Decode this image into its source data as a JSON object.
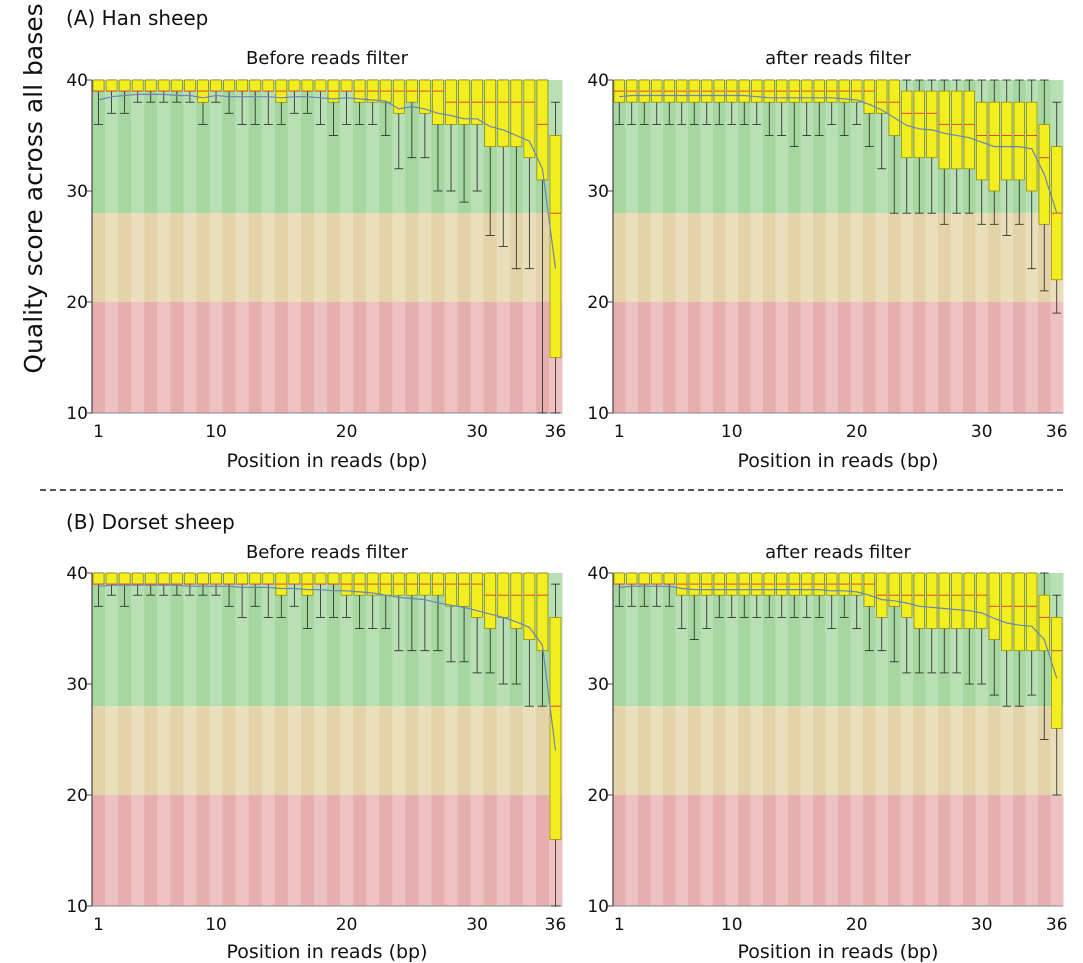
{
  "y_axis_title": "Quality score across all bases",
  "sections": [
    {
      "label": "(A) Han sheep"
    },
    {
      "label": "(B) Dorset sheep"
    }
  ],
  "colors": {
    "zone_good": "#b9e0b4",
    "zone_good_dark": "#a6d7a0",
    "zone_mid": "#eadfbb",
    "zone_mid_dark": "#e4d3a8",
    "zone_bad": "#eec2c2",
    "zone_bad_dark": "#e6aeae",
    "box_fill": "#f3ee1f",
    "box_stroke": "#8a8400",
    "median": "#e0472a",
    "mean_line": "#6a86b4",
    "whisker": "#222222"
  },
  "chart_data": [
    {
      "type": "box",
      "panel": "A-before",
      "title": "Before reads filter",
      "xlabel": "Position in reads (bp)",
      "ylabel": "",
      "ylim": [
        10,
        40
      ],
      "xlim": [
        1,
        36
      ],
      "x_ticks": [
        1,
        10,
        20,
        30,
        36
      ],
      "y_ticks": [
        10,
        20,
        30,
        40
      ],
      "zones": {
        "good": [
          28,
          40
        ],
        "mid": [
          20,
          28
        ],
        "bad": [
          10,
          20
        ]
      },
      "lower": [
        38,
        38,
        38,
        38,
        38,
        38,
        38,
        38,
        38,
        38,
        38,
        38,
        38,
        38,
        38,
        38,
        38,
        38,
        38,
        38,
        38,
        38,
        38,
        36,
        36,
        36,
        36,
        36,
        35,
        36,
        34,
        34,
        34,
        33,
        31,
        15
      ],
      "q1": [
        39,
        39,
        39,
        39,
        39,
        39,
        39,
        39,
        38,
        39,
        39,
        39,
        39,
        39,
        38,
        39,
        39,
        39,
        38,
        39,
        38,
        38,
        38,
        37,
        38,
        37,
        36,
        36,
        36,
        36,
        34,
        34,
        34,
        33,
        31,
        15
      ],
      "median": [
        39,
        39,
        39,
        39,
        39,
        39,
        39,
        39,
        39,
        39,
        39,
        39,
        39,
        39,
        39,
        39,
        39,
        39,
        39,
        39,
        39,
        39,
        39,
        39,
        39,
        39,
        39,
        38,
        38,
        38,
        38,
        38,
        38,
        38,
        36,
        28
      ],
      "q3": [
        40,
        40,
        40,
        40,
        40,
        40,
        40,
        40,
        40,
        40,
        40,
        40,
        40,
        40,
        40,
        40,
        40,
        40,
        40,
        40,
        40,
        40,
        40,
        40,
        40,
        40,
        40,
        40,
        40,
        40,
        40,
        40,
        40,
        40,
        40,
        35
      ],
      "low_whisker": [
        36,
        37,
        37,
        38,
        38,
        38,
        38,
        38,
        36,
        38,
        37,
        36,
        36,
        36,
        36,
        37,
        37,
        36,
        35,
        36,
        36,
        36,
        35,
        32,
        33,
        33,
        30,
        30,
        29,
        30,
        26,
        25,
        23,
        23,
        10,
        10
      ],
      "high_whisker": [
        40,
        40,
        40,
        40,
        40,
        40,
        40,
        40,
        40,
        40,
        40,
        40,
        40,
        40,
        40,
        40,
        40,
        40,
        40,
        40,
        40,
        40,
        40,
        40,
        40,
        40,
        40,
        40,
        40,
        40,
        40,
        40,
        40,
        40,
        40,
        38
      ],
      "mean": [
        38.2,
        38.5,
        38.6,
        38.7,
        38.7,
        38.7,
        38.6,
        38.6,
        38.4,
        38.6,
        38.5,
        38.5,
        38.5,
        38.5,
        38.4,
        38.5,
        38.5,
        38.4,
        38.3,
        38.4,
        38.3,
        38.2,
        38.1,
        37.4,
        37.6,
        37.4,
        37.0,
        36.8,
        36.5,
        36.5,
        35.8,
        35.5,
        35.0,
        34.5,
        32.0,
        23.0
      ]
    },
    {
      "type": "box",
      "panel": "A-after",
      "title": "after reads filter",
      "xlabel": "Position in reads (bp)",
      "ylabel": "",
      "ylim": [
        10,
        40
      ],
      "xlim": [
        1,
        36
      ],
      "x_ticks": [
        1,
        10,
        20,
        30,
        36
      ],
      "y_ticks": [
        10,
        20,
        30,
        40
      ],
      "zones": {
        "good": [
          28,
          40
        ],
        "mid": [
          20,
          28
        ],
        "bad": [
          10,
          20
        ]
      },
      "q1": [
        38,
        38,
        38,
        38,
        38,
        38,
        38,
        38,
        38,
        38,
        38,
        38,
        38,
        38,
        38,
        38,
        38,
        38,
        38,
        38,
        37,
        37,
        35,
        33,
        33,
        33,
        32,
        32,
        32,
        31,
        30,
        31,
        31,
        30,
        27,
        22
      ],
      "median": [
        39,
        39,
        39,
        39,
        39,
        39,
        39,
        39,
        39,
        39,
        39,
        39,
        39,
        39,
        39,
        39,
        39,
        39,
        39,
        39,
        39,
        38,
        38,
        37,
        37,
        37,
        36,
        36,
        36,
        35,
        35,
        35,
        35,
        35,
        33,
        28
      ],
      "q3": [
        40,
        40,
        40,
        40,
        40,
        40,
        40,
        40,
        40,
        40,
        40,
        40,
        40,
        40,
        40,
        40,
        40,
        40,
        40,
        40,
        40,
        40,
        40,
        39,
        39,
        39,
        39,
        39,
        39,
        38,
        38,
        38,
        38,
        38,
        36,
        34
      ],
      "low_whisker": [
        36,
        36,
        36,
        36,
        36,
        36,
        36,
        36,
        36,
        36,
        36,
        36,
        35,
        35,
        34,
        35,
        35,
        36,
        35,
        36,
        34,
        32,
        28,
        28,
        28,
        28,
        27,
        28,
        28,
        27,
        27,
        26,
        27,
        23,
        21,
        19
      ],
      "high_whisker": [
        40,
        40,
        40,
        40,
        40,
        40,
        40,
        40,
        40,
        40,
        40,
        40,
        40,
        40,
        40,
        40,
        40,
        40,
        40,
        40,
        40,
        40,
        40,
        40,
        40,
        40,
        40,
        40,
        40,
        40,
        40,
        40,
        40,
        40,
        40,
        38
      ],
      "mean": [
        38.5,
        38.6,
        38.6,
        38.6,
        38.6,
        38.6,
        38.6,
        38.6,
        38.6,
        38.6,
        38.6,
        38.5,
        38.4,
        38.4,
        38.4,
        38.4,
        38.4,
        38.4,
        38.3,
        38.2,
        37.8,
        37.3,
        36.6,
        35.9,
        35.6,
        35.5,
        35.2,
        35.0,
        34.8,
        34.4,
        34.0,
        34.0,
        34.0,
        33.8,
        31.5,
        28.0
      ]
    },
    {
      "type": "box",
      "panel": "B-before",
      "title": "Before reads filter",
      "xlabel": "Position in reads (bp)",
      "ylabel": "",
      "ylim": [
        10,
        40
      ],
      "xlim": [
        1,
        36
      ],
      "x_ticks": [
        1,
        10,
        20,
        30,
        36
      ],
      "y_ticks": [
        10,
        20,
        30,
        40
      ],
      "zones": {
        "good": [
          28,
          40
        ],
        "mid": [
          20,
          28
        ],
        "bad": [
          10,
          20
        ]
      },
      "q1": [
        39,
        39,
        39,
        39,
        39,
        39,
        39,
        39,
        39,
        39,
        39,
        39,
        39,
        39,
        38,
        39,
        38,
        39,
        39,
        38,
        38,
        38,
        38,
        38,
        38,
        38,
        38,
        37,
        37,
        36,
        35,
        36,
        35,
        34,
        33,
        16
      ],
      "median": [
        39,
        39,
        39,
        39,
        39,
        39,
        39,
        39,
        39,
        39,
        39,
        39,
        39,
        39,
        39,
        39,
        39,
        39,
        39,
        39,
        39,
        39,
        39,
        39,
        39,
        39,
        39,
        39,
        39,
        39,
        38,
        38,
        38,
        38,
        38,
        28
      ],
      "q3": [
        40,
        40,
        40,
        40,
        40,
        40,
        40,
        40,
        40,
        40,
        40,
        40,
        40,
        40,
        40,
        40,
        40,
        40,
        40,
        40,
        40,
        40,
        40,
        40,
        40,
        40,
        40,
        40,
        40,
        40,
        40,
        40,
        40,
        40,
        40,
        36
      ],
      "low_whisker": [
        37,
        38,
        37,
        38,
        38,
        38,
        38,
        38,
        38,
        38,
        37,
        36,
        37,
        36,
        36,
        37,
        35,
        36,
        36,
        36,
        35,
        35,
        35,
        33,
        33,
        33,
        33,
        32,
        32,
        31,
        31,
        30,
        30,
        28,
        28,
        10
      ],
      "high_whisker": [
        40,
        40,
        40,
        40,
        40,
        40,
        40,
        40,
        40,
        40,
        40,
        40,
        40,
        40,
        40,
        40,
        40,
        40,
        40,
        40,
        40,
        40,
        40,
        40,
        40,
        40,
        40,
        40,
        40,
        40,
        40,
        40,
        40,
        40,
        40,
        39
      ],
      "mean": [
        38.8,
        38.9,
        38.9,
        38.9,
        38.9,
        38.9,
        38.9,
        38.8,
        38.8,
        38.8,
        38.8,
        38.7,
        38.7,
        38.7,
        38.6,
        38.6,
        38.5,
        38.5,
        38.4,
        38.4,
        38.3,
        38.2,
        38.0,
        37.8,
        37.7,
        37.6,
        37.3,
        37.1,
        36.9,
        36.6,
        36.3,
        36.0,
        35.6,
        35.1,
        33.5,
        24.0
      ]
    },
    {
      "type": "box",
      "panel": "B-after",
      "title": "after reads filter",
      "xlabel": "Position in reads (bp)",
      "ylabel": "",
      "ylim": [
        10,
        40
      ],
      "xlim": [
        1,
        36
      ],
      "x_ticks": [
        1,
        10,
        20,
        30,
        36
      ],
      "y_ticks": [
        10,
        20,
        30,
        40
      ],
      "zones": {
        "good": [
          28,
          40
        ],
        "mid": [
          20,
          28
        ],
        "bad": [
          10,
          20
        ]
      },
      "q1": [
        39,
        39,
        39,
        39,
        39,
        38,
        38,
        38,
        38,
        38,
        38,
        38,
        38,
        38,
        38,
        38,
        38,
        38,
        38,
        38,
        37,
        36,
        37,
        36,
        35,
        35,
        35,
        35,
        35,
        35,
        34,
        33,
        33,
        33,
        33,
        26
      ],
      "median": [
        39,
        39,
        39,
        39,
        39,
        39,
        39,
        39,
        39,
        39,
        39,
        39,
        39,
        39,
        39,
        39,
        39,
        39,
        39,
        39,
        39,
        38,
        38,
        38,
        38,
        38,
        38,
        38,
        38,
        38,
        37,
        37,
        37,
        37,
        36,
        33
      ],
      "q3": [
        40,
        40,
        40,
        40,
        40,
        40,
        40,
        40,
        40,
        40,
        40,
        40,
        40,
        40,
        40,
        40,
        40,
        40,
        40,
        40,
        40,
        40,
        40,
        40,
        40,
        40,
        40,
        40,
        40,
        40,
        40,
        40,
        40,
        40,
        38,
        36
      ],
      "low_whisker": [
        37,
        37,
        37,
        37,
        37,
        35,
        34,
        35,
        36,
        36,
        36,
        36,
        36,
        36,
        36,
        36,
        36,
        35,
        36,
        35,
        33,
        33,
        32,
        31,
        31,
        31,
        31,
        31,
        30,
        30,
        29,
        28,
        28,
        29,
        25,
        20
      ],
      "high_whisker": [
        40,
        40,
        40,
        40,
        40,
        40,
        40,
        40,
        40,
        40,
        40,
        40,
        40,
        40,
        40,
        40,
        40,
        40,
        40,
        40,
        40,
        40,
        40,
        40,
        40,
        40,
        40,
        40,
        40,
        40,
        40,
        40,
        40,
        40,
        40,
        38
      ],
      "mean": [
        38.7,
        38.8,
        38.8,
        38.8,
        38.8,
        38.6,
        38.5,
        38.5,
        38.5,
        38.5,
        38.5,
        38.5,
        38.5,
        38.5,
        38.5,
        38.5,
        38.5,
        38.4,
        38.4,
        38.3,
        38.0,
        37.6,
        37.5,
        37.3,
        37.0,
        36.9,
        36.8,
        36.7,
        36.6,
        36.4,
        35.9,
        35.5,
        35.3,
        35.2,
        34.0,
        30.5
      ]
    }
  ]
}
